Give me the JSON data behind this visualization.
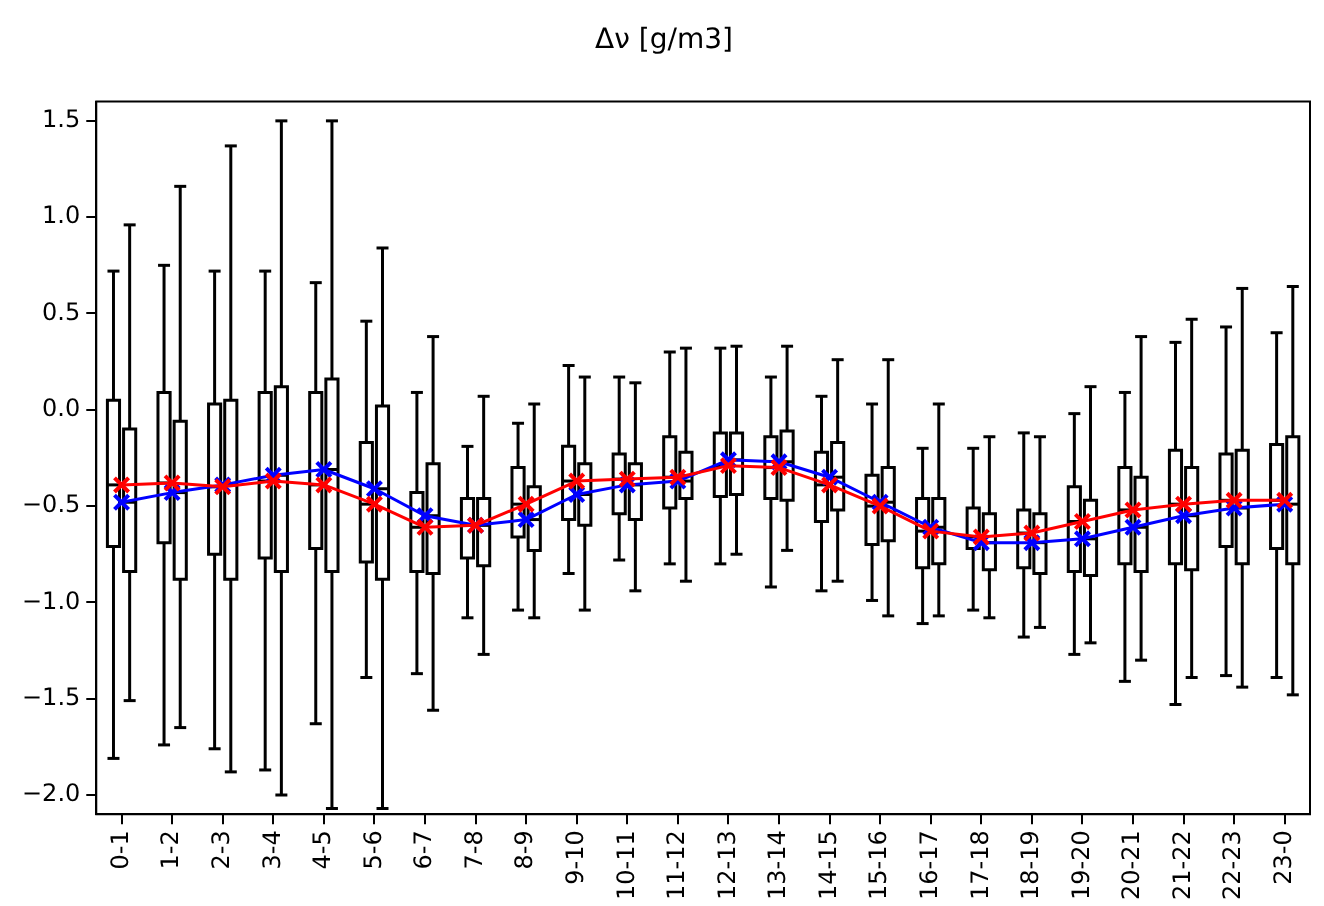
{
  "chart_data": {
    "type": "box",
    "title": "Δν [g/m3]",
    "categories": [
      "0-1",
      "1-2",
      "2-3",
      "3-4",
      "4-5",
      "5-6",
      "6-7",
      "7-8",
      "8-9",
      "9-10",
      "10-11",
      "11-12",
      "12-13",
      "13-14",
      "14-15",
      "15-16",
      "16-17",
      "17-18",
      "18-19",
      "19-20",
      "20-21",
      "21-22",
      "22-23",
      "23-0"
    ],
    "ylim": [
      -2.1,
      1.6
    ],
    "yticks": [
      {
        "value": -2,
        "label": "−2.0"
      },
      {
        "value": -1.5,
        "label": "−1.5"
      },
      {
        "value": -1,
        "label": "−1.0"
      },
      {
        "value": -0.5,
        "label": "−0.5"
      },
      {
        "value": 0,
        "label": "0.0"
      },
      {
        "value": 0.5,
        "label": "0.5"
      },
      {
        "value": 1,
        "label": "1.0"
      },
      {
        "value": 1.5,
        "label": "1.5"
      }
    ],
    "grid": false,
    "legend": false,
    "series": [
      {
        "type": "box",
        "color": "#000000",
        "boxes": [
          {
            "low": -1.81,
            "q1": -0.71,
            "median": -0.39,
            "q3": 0.05,
            "high": 0.72
          },
          {
            "low": -1.74,
            "q1": -0.69,
            "median": -0.38,
            "q3": 0.09,
            "high": 0.75
          },
          {
            "low": -1.76,
            "q1": -0.75,
            "median": -0.4,
            "q3": 0.03,
            "high": 0.72
          },
          {
            "low": -1.87,
            "q1": -0.77,
            "median": -0.37,
            "q3": 0.09,
            "high": 0.72
          },
          {
            "low": -1.63,
            "q1": -0.72,
            "median": -0.39,
            "q3": 0.09,
            "high": 0.66
          },
          {
            "low": -1.39,
            "q1": -0.79,
            "median": -0.49,
            "q3": -0.17,
            "high": 0.46
          },
          {
            "low": -1.37,
            "q1": -0.84,
            "median": -0.61,
            "q3": -0.43,
            "high": 0.09
          },
          {
            "low": -1.08,
            "q1": -0.77,
            "median": -0.6,
            "q3": -0.46,
            "high": -0.19
          },
          {
            "low": -1.04,
            "q1": -0.66,
            "median": -0.49,
            "q3": -0.3,
            "high": -0.07
          },
          {
            "low": -0.85,
            "q1": -0.57,
            "median": -0.37,
            "q3": -0.19,
            "high": 0.23
          },
          {
            "low": -0.78,
            "q1": -0.54,
            "median": -0.36,
            "q3": -0.23,
            "high": 0.17
          },
          {
            "low": -0.8,
            "q1": -0.51,
            "median": -0.35,
            "q3": -0.14,
            "high": 0.3
          },
          {
            "low": -0.8,
            "q1": -0.45,
            "median": -0.29,
            "q3": -0.12,
            "high": 0.32
          },
          {
            "low": -0.92,
            "q1": -0.46,
            "median": -0.3,
            "q3": -0.14,
            "high": 0.17
          },
          {
            "low": -0.94,
            "q1": -0.58,
            "median": -0.39,
            "q3": -0.22,
            "high": 0.07
          },
          {
            "low": -0.99,
            "q1": -0.7,
            "median": -0.5,
            "q3": -0.34,
            "high": 0.03
          },
          {
            "low": -1.11,
            "q1": -0.82,
            "median": -0.63,
            "q3": -0.46,
            "high": -0.2
          },
          {
            "low": -1.04,
            "q1": -0.72,
            "median": -0.66,
            "q3": -0.51,
            "high": -0.2
          },
          {
            "low": -1.18,
            "q1": -0.82,
            "median": -0.64,
            "q3": -0.52,
            "high": -0.12
          },
          {
            "low": -1.27,
            "q1": -0.84,
            "median": -0.58,
            "q3": -0.4,
            "high": -0.02
          },
          {
            "low": -1.41,
            "q1": -0.8,
            "median": -0.52,
            "q3": -0.3,
            "high": 0.09
          },
          {
            "low": -1.53,
            "q1": -0.8,
            "median": -0.49,
            "q3": -0.21,
            "high": 0.35
          },
          {
            "low": -1.38,
            "q1": -0.71,
            "median": -0.47,
            "q3": -0.23,
            "high": 0.43
          },
          {
            "low": -1.39,
            "q1": -0.72,
            "median": -0.47,
            "q3": -0.18,
            "high": 0.4
          }
        ]
      },
      {
        "type": "box",
        "color": "#000000",
        "boxes": [
          {
            "low": -1.51,
            "q1": -0.84,
            "median": -0.48,
            "q3": -0.1,
            "high": 0.96
          },
          {
            "low": -1.65,
            "q1": -0.88,
            "median": -0.43,
            "q3": -0.06,
            "high": 1.16
          },
          {
            "low": -1.88,
            "q1": -0.88,
            "median": -0.39,
            "q3": 0.05,
            "high": 1.37
          },
          {
            "low": -2.0,
            "q1": -0.84,
            "median": -0.34,
            "q3": 0.12,
            "high": 1.5
          },
          {
            "low": -2.07,
            "q1": -0.84,
            "median": -0.31,
            "q3": 0.16,
            "high": 1.5
          },
          {
            "low": -2.07,
            "q1": -0.88,
            "median": -0.41,
            "q3": 0.02,
            "high": 0.84
          },
          {
            "low": -1.56,
            "q1": -0.85,
            "median": -0.55,
            "q3": -0.28,
            "high": 0.38
          },
          {
            "low": -1.27,
            "q1": -0.81,
            "median": -0.6,
            "q3": -0.46,
            "high": 0.07
          },
          {
            "low": -1.08,
            "q1": -0.73,
            "median": -0.57,
            "q3": -0.4,
            "high": 0.03
          },
          {
            "low": -1.04,
            "q1": -0.6,
            "median": -0.44,
            "q3": -0.28,
            "high": 0.17
          },
          {
            "low": -0.94,
            "q1": -0.57,
            "median": -0.39,
            "q3": -0.28,
            "high": 0.14
          },
          {
            "low": -0.89,
            "q1": -0.46,
            "median": -0.37,
            "q3": -0.22,
            "high": 0.32
          },
          {
            "low": -0.75,
            "q1": -0.44,
            "median": -0.26,
            "q3": -0.12,
            "high": 0.33
          },
          {
            "low": -0.73,
            "q1": -0.47,
            "median": -0.27,
            "q3": -0.11,
            "high": 0.33
          },
          {
            "low": -0.89,
            "q1": -0.52,
            "median": -0.35,
            "q3": -0.17,
            "high": 0.26
          },
          {
            "low": -1.07,
            "q1": -0.68,
            "median": -0.48,
            "q3": -0.3,
            "high": 0.26
          },
          {
            "low": -1.07,
            "q1": -0.8,
            "median": -0.61,
            "q3": -0.46,
            "high": 0.03
          },
          {
            "low": -1.08,
            "q1": -0.83,
            "median": -0.69,
            "q3": -0.54,
            "high": -0.14
          },
          {
            "low": -1.13,
            "q1": -0.85,
            "median": -0.69,
            "q3": -0.54,
            "high": -0.14
          },
          {
            "low": -1.21,
            "q1": -0.86,
            "median": -0.67,
            "q3": -0.47,
            "high": 0.12
          },
          {
            "low": -1.3,
            "q1": -0.84,
            "median": -0.61,
            "q3": -0.35,
            "high": 0.38
          },
          {
            "low": -1.39,
            "q1": -0.83,
            "median": -0.55,
            "q3": -0.3,
            "high": 0.47
          },
          {
            "low": -1.44,
            "q1": -0.8,
            "median": -0.51,
            "q3": -0.21,
            "high": 0.63
          },
          {
            "low": -1.48,
            "q1": -0.8,
            "median": -0.49,
            "q3": -0.14,
            "high": 0.64
          }
        ]
      },
      {
        "type": "line",
        "color": "#ff0000",
        "marker": "cross",
        "values": [
          -0.39,
          -0.38,
          -0.4,
          -0.37,
          -0.39,
          -0.49,
          -0.61,
          -0.6,
          -0.49,
          -0.37,
          -0.36,
          -0.35,
          -0.29,
          -0.3,
          -0.39,
          -0.5,
          -0.63,
          -0.66,
          -0.64,
          -0.58,
          -0.52,
          -0.49,
          -0.47,
          -0.47
        ]
      },
      {
        "type": "line",
        "color": "#0000ff",
        "marker": "cross",
        "values": [
          -0.48,
          -0.43,
          -0.39,
          -0.34,
          -0.31,
          -0.41,
          -0.55,
          -0.6,
          -0.57,
          -0.44,
          -0.39,
          -0.37,
          -0.26,
          -0.27,
          -0.35,
          -0.48,
          -0.61,
          -0.69,
          -0.69,
          -0.67,
          -0.61,
          -0.55,
          -0.51,
          -0.49
        ]
      }
    ]
  }
}
